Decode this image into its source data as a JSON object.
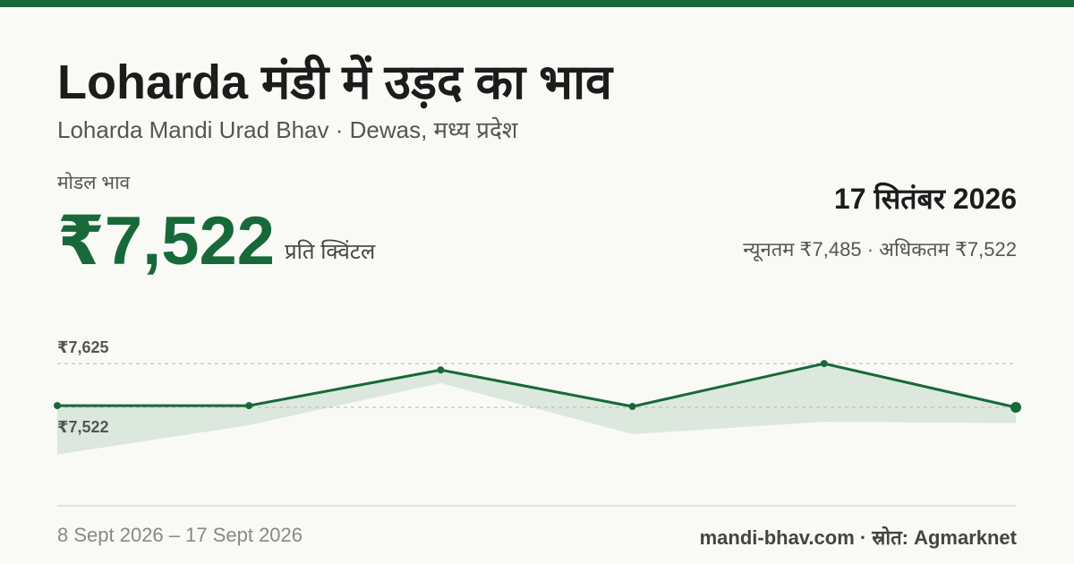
{
  "header": {
    "title": "Loharda मंडी में उड़द का भाव",
    "subtitle": "Loharda Mandi Urad Bhav · Dewas, मध्य प्रदेश",
    "unit": "प्रति क्विंटल",
    "date": "17 सितंबर 2026",
    "stats_separator": "·",
    "date_range": "8 Sept 2026 – 17 Sept 2026",
    "source": "mandi-bhav.com · स्रोत: Agmarknet"
  },
  "chart_data": {
    "type": "line",
    "categories": [
      null,
      null,
      null,
      null,
      null,
      null
    ],
    "series": [
      {
        "name": "मोडल भाव",
        "color": "#17693a",
        "values": [
          7526,
          7526,
          7610,
          7524,
          7625,
          7522
        ],
        "value_labels": [
          null,
          null,
          null,
          null,
          null,
          "₹7,522"
        ]
      },
      {
        "name": "न्यूनतम",
        "color": "#dce8de",
        "values": [
          7411,
          7480,
          7579,
          7459,
          7488,
          7485
        ],
        "value_labels": [
          null,
          null,
          null,
          null,
          null,
          "₹7,485"
        ]
      },
      {
        "name": "अधिकतम",
        "color": "#dce8de",
        "values": [
          7526,
          7526,
          7610,
          7524,
          7625,
          7522
        ],
        "value_labels": [
          null,
          null,
          null,
          null,
          null,
          "₹7,522"
        ]
      }
    ],
    "ylim": [
      7385,
      7680
    ],
    "yticks": [
      {
        "value": 7625,
        "label": "₹7,625"
      },
      {
        "value": 7522,
        "label": "₹7,522"
      }
    ],
    "grid": true
  }
}
